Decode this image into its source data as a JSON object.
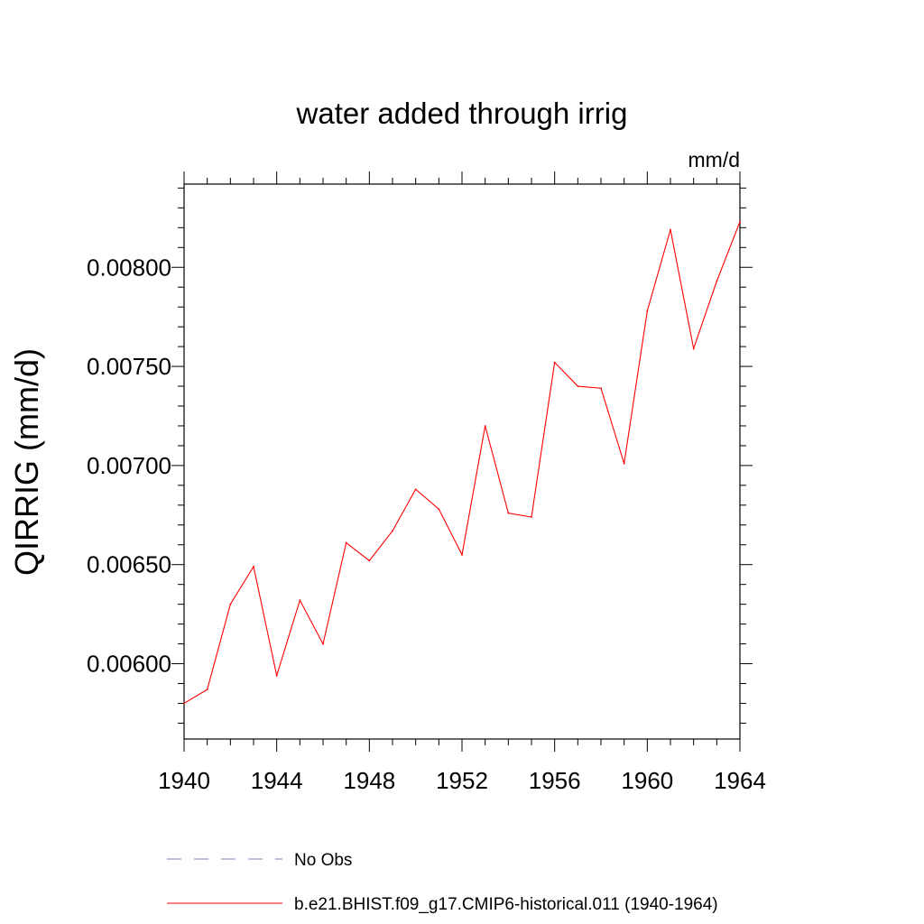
{
  "chart_data": {
    "type": "line",
    "title": "water added through irrig",
    "units_label": "mm/d",
    "ylabel": "QIRRIG  (mm/d)",
    "xlabel": "",
    "xlim": [
      1940,
      1964
    ],
    "ylim": [
      0.00562,
      0.00842
    ],
    "xticks": [
      1940,
      1944,
      1948,
      1952,
      1956,
      1960,
      1964
    ],
    "yticks": [
      0.006,
      0.0065,
      0.007,
      0.0075,
      0.008
    ],
    "ytick_labels": [
      "0.00600",
      "0.00650",
      "0.00700",
      "0.00750",
      "0.00800"
    ],
    "x": [
      1940,
      1941,
      1942,
      1943,
      1944,
      1945,
      1946,
      1947,
      1948,
      1949,
      1950,
      1951,
      1952,
      1953,
      1954,
      1955,
      1956,
      1957,
      1958,
      1959,
      1960,
      1961,
      1962,
      1963,
      1964
    ],
    "series": [
      {
        "name": "b.e21.BHIST.f09_g17.CMIP6-historical.011 (1940-1964)",
        "color": "#ff0000",
        "style": "solid",
        "values": [
          0.0058,
          0.00587,
          0.0063,
          0.00649,
          0.00594,
          0.00632,
          0.0061,
          0.00661,
          0.00652,
          0.00667,
          0.00688,
          0.00678,
          0.00655,
          0.0072,
          0.00676,
          0.00674,
          0.00752,
          0.0074,
          0.00739,
          0.00701,
          0.00778,
          0.00819,
          0.00759,
          0.00793,
          0.00823
        ]
      }
    ],
    "legend": [
      {
        "label": "No Obs",
        "color": "#8080c0",
        "style": "dashed"
      },
      {
        "label": "b.e21.BHIST.f09_g17.CMIP6-historical.011 (1940-1964)",
        "color": "#ff0000",
        "style": "solid"
      }
    ],
    "grid": false,
    "legend_position": "bottom"
  }
}
